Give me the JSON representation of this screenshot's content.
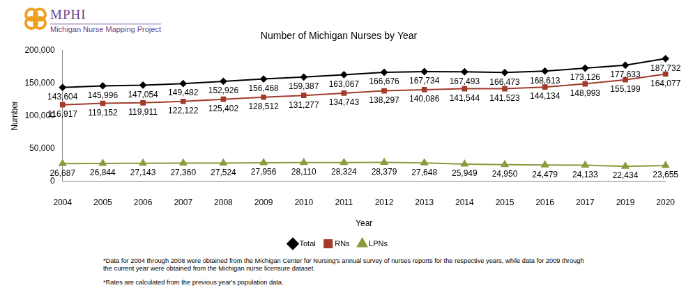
{
  "header": {
    "logo": "MPHI",
    "project": "Michigan Nurse Mapping Project"
  },
  "notes": [
    "*Data for 2004 through 2008 were obtained from the Michigan Center for Nursing's annual survey of nurses reports for the respective years, while data for 2009 through the current year were obtained from the Michigan nurse licensure dataset.",
    "*Rates are calculated from the previous year's population data."
  ],
  "chart_data": {
    "type": "line",
    "title": "Number of Michigan Nurses by Year",
    "x_label": "Year",
    "y_label": "Number",
    "categories": [
      "2004",
      "2005",
      "2006",
      "2007",
      "2008",
      "2009",
      "2010",
      "2011",
      "2012",
      "2013",
      "2014",
      "2015",
      "2016",
      "2017",
      "2019",
      "2020"
    ],
    "series": [
      {
        "name": "Total",
        "color": "#000000",
        "marker": "diamond",
        "values": [
          143604,
          145996,
          147054,
          149482,
          152926,
          156468,
          159387,
          163067,
          166676,
          167734,
          167493,
          166473,
          168613,
          173126,
          177633,
          187732
        ],
        "value_labels": [
          "143,604",
          "145,996",
          "147,054",
          "149,482",
          "152,926",
          "156,468",
          "159,387",
          "163,067",
          "166,676",
          "167,734",
          "167,493",
          "166,473",
          "168,613",
          "173,126",
          "177,633",
          "187,732"
        ]
      },
      {
        "name": "RNs",
        "color": "#a33b2b",
        "marker": "square",
        "values": [
          116917,
          119152,
          119911,
          122122,
          125402,
          128512,
          131277,
          134743,
          138297,
          140086,
          141544,
          141523,
          144134,
          148993,
          155199,
          164077
        ],
        "value_labels": [
          "116,917",
          "119,152",
          "119,911",
          "122,122",
          "125,402",
          "128,512",
          "131,277",
          "134,743",
          "138,297",
          "140,086",
          "141,544",
          "141,523",
          "144,134",
          "148,993",
          "155,199",
          "164,077"
        ]
      },
      {
        "name": "LPNs",
        "color": "#8c9a3c",
        "marker": "triangle",
        "values": [
          26687,
          26844,
          27143,
          27360,
          27524,
          27956,
          28110,
          28324,
          28379,
          27648,
          25949,
          24950,
          24479,
          24133,
          22434,
          23655
        ],
        "value_labels": [
          "26,687",
          "26,844",
          "27,143",
          "27,360",
          "27,524",
          "27,956",
          "28,110",
          "28,324",
          "28,379",
          "27,648",
          "25,949",
          "24,950",
          "24,479",
          "24,133",
          "22,434",
          "23,655"
        ]
      }
    ],
    "ylim": [
      0,
      200000
    ],
    "yticks": [
      0,
      {
        "value": 50000,
        "label": "50,000"
      },
      {
        "value": 100000,
        "label": "100,000"
      },
      {
        "value": 150000,
        "label": "150,000"
      },
      {
        "value": 200000,
        "label": "200,000"
      }
    ],
    "grid": false,
    "legend": "bottom",
    "data_labels": true
  }
}
